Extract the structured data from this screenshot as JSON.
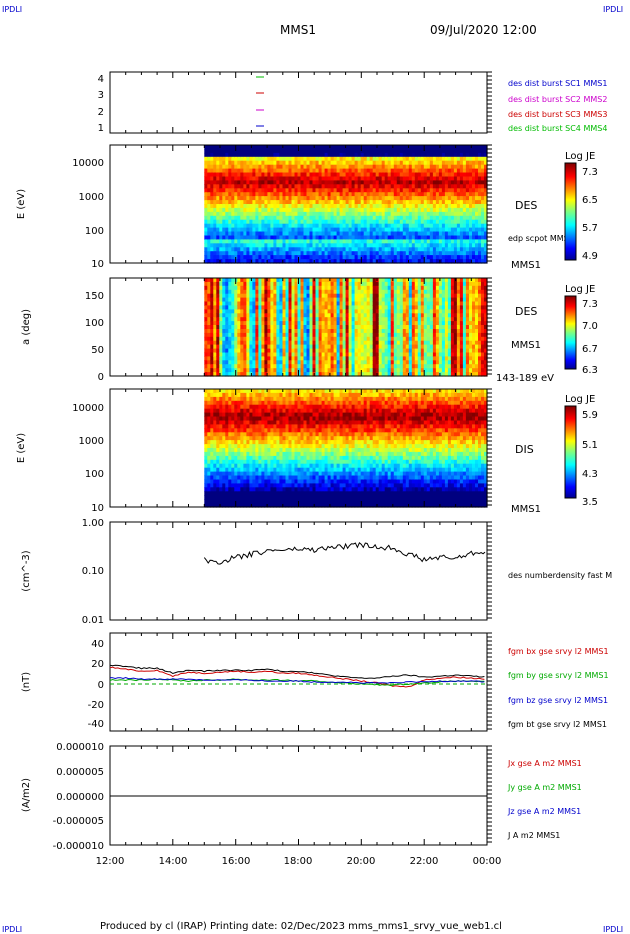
{
  "header": {
    "corner_label": "IPDLI",
    "spacecraft": "MMS1",
    "date": "09/Jul/2020 12:00"
  },
  "footer": {
    "text": "Produced by cl (IRAP)   Printing date: 02/Dec/2023   mms_mms1_srvy_vue_web1.cl"
  },
  "colors": {
    "mms1": "#0000cc",
    "mms2": "#cc00cc",
    "mms3": "#cc0000",
    "mms4": "#00bb00",
    "bx": "#cc0000",
    "by": "#00aa00",
    "bz": "#0000cc",
    "bt": "#000000"
  },
  "chart_data": [
    {
      "type": "line",
      "panel": "tetrahedron",
      "yticks": [
        "1",
        "2",
        "3",
        "4"
      ],
      "series": [
        {
          "name": "des dist burst SC1 MMS1",
          "y": 1
        },
        {
          "name": "des dist burst SC2 MMS2",
          "y": 2
        },
        {
          "name": "des dist burst SC3 MMS3",
          "y": 3
        },
        {
          "name": "des dist burst SC4 MMS4",
          "y": 4
        }
      ],
      "marker_time": "16:45"
    },
    {
      "type": "heatmap",
      "panel": "des-energy",
      "ylabel": "E (eV)",
      "yscale": "log",
      "ylim": [
        10,
        30000
      ],
      "yticks": [
        "10",
        "100",
        "1000",
        "10000"
      ],
      "label": "DES",
      "overlay_label": "edp scpot MMS1",
      "sc_label": "MMS1",
      "colorbar": {
        "title": "Log JE",
        "ticks": [
          "7.3",
          "6.5",
          "5.7",
          "4.9"
        ]
      },
      "data_start": "15:00",
      "data_end": "24:00"
    },
    {
      "type": "heatmap",
      "panel": "des-pitch",
      "ylabel": "a (deg)",
      "ylim": [
        0,
        180
      ],
      "yticks": [
        "0",
        "50",
        "100",
        "150"
      ],
      "label": "DES",
      "sc_label": "MMS1",
      "energy_label": "143-189 eV",
      "colorbar": {
        "title": "Log JE",
        "ticks": [
          "7.3",
          "7.0",
          "6.7",
          "6.3"
        ]
      },
      "data_start": "15:00",
      "data_end": "24:00"
    },
    {
      "type": "heatmap",
      "panel": "dis-energy",
      "ylabel": "E (eV)",
      "yscale": "log",
      "ylim": [
        10,
        30000
      ],
      "yticks": [
        "10",
        "100",
        "1000",
        "10000"
      ],
      "label": "DIS",
      "sc_label": "MMS1",
      "colorbar": {
        "title": "Log JE",
        "ticks": [
          "5.9",
          "5.1",
          "4.3",
          "3.5"
        ]
      },
      "data_start": "15:00",
      "data_end": "24:00"
    },
    {
      "type": "line",
      "panel": "density",
      "ylabel": "(cm^-3)",
      "yscale": "log",
      "ylim": [
        0.01,
        1.0
      ],
      "yticks": [
        "0.01",
        "0.10",
        "1.00"
      ],
      "series": [
        {
          "name": "des numberdensity fast M",
          "t": [
            "15:00",
            "15:30",
            "16:00",
            "16:30",
            "17:00",
            "17:30",
            "18:00",
            "18:30",
            "19:00",
            "19:30",
            "20:00",
            "20:30",
            "21:00",
            "21:30",
            "22:00",
            "22:30",
            "23:00",
            "23:30",
            "24:00"
          ],
          "values": [
            0.17,
            0.15,
            0.19,
            0.22,
            0.26,
            0.27,
            0.28,
            0.27,
            0.3,
            0.32,
            0.34,
            0.31,
            0.3,
            0.22,
            0.17,
            0.19,
            0.18,
            0.23,
            0.26
          ]
        }
      ]
    },
    {
      "type": "line",
      "panel": "magnetic-field",
      "ylabel": "(nT)",
      "ylim": [
        -50,
        50
      ],
      "yticks": [
        "-40",
        "-20",
        "0",
        "20",
        "40"
      ],
      "t": [
        "12:00",
        "12:30",
        "13:00",
        "13:30",
        "14:00",
        "14:30",
        "15:00",
        "15:30",
        "16:00",
        "16:30",
        "17:00",
        "17:30",
        "18:00",
        "18:30",
        "19:00",
        "19:30",
        "20:00",
        "20:30",
        "21:00",
        "21:30",
        "22:00",
        "22:30",
        "23:00",
        "23:30",
        "24:00"
      ],
      "series": [
        {
          "name": "fgm bx gse srvy l2 MMS1",
          "values": [
            15,
            13,
            11,
            12,
            6,
            10,
            9,
            10,
            11,
            10,
            11,
            9,
            9,
            7,
            5,
            3,
            1,
            -1,
            -4,
            -5,
            2,
            4,
            5,
            4,
            3
          ]
        },
        {
          "name": "fgm by gse srvy l2 MMS1",
          "values": [
            2,
            2,
            2,
            3,
            2,
            1,
            2,
            2,
            3,
            2,
            2,
            2,
            1,
            1,
            0,
            -1,
            -2,
            -3,
            -3,
            -2,
            -1,
            0,
            1,
            1,
            0
          ]
        },
        {
          "name": "fgm bz gse srvy l2 MMS1",
          "values": [
            4,
            4,
            3,
            3,
            3,
            3,
            2,
            2,
            2,
            2,
            1,
            1,
            1,
            0,
            0,
            0,
            -1,
            -1,
            -1,
            0,
            0,
            1,
            1,
            1,
            0
          ]
        },
        {
          "name": "fgm bt gse srvy l2 MMS1",
          "values": [
            17,
            16,
            14,
            14,
            9,
            12,
            11,
            12,
            12,
            12,
            13,
            11,
            11,
            9,
            7,
            5,
            4,
            4,
            6,
            7,
            5,
            6,
            7,
            6,
            5
          ]
        }
      ]
    },
    {
      "type": "line",
      "panel": "current-density",
      "ylabel": "(A/m2)",
      "ylim": [
        -1e-05,
        1e-05
      ],
      "yticks": [
        "-0.000010",
        "-0.000005",
        "0.000000",
        "0.000005",
        "0.000010"
      ],
      "series": [
        {
          "name": "Jx gse A m2 MMS1",
          "values": [
            0,
            0
          ]
        },
        {
          "name": "Jy gse A m2 MMS1",
          "values": [
            0,
            0
          ]
        },
        {
          "name": "Jz gse A m2 MMS1",
          "values": [
            0,
            0
          ]
        },
        {
          "name": "J A m2 MMS1",
          "values": [
            0,
            0
          ]
        }
      ]
    }
  ],
  "time_axis": {
    "ticks": [
      "12:00",
      "14:00",
      "16:00",
      "18:00",
      "20:00",
      "22:00",
      "00:00"
    ],
    "start_hour": 12,
    "end_hour": 24
  }
}
